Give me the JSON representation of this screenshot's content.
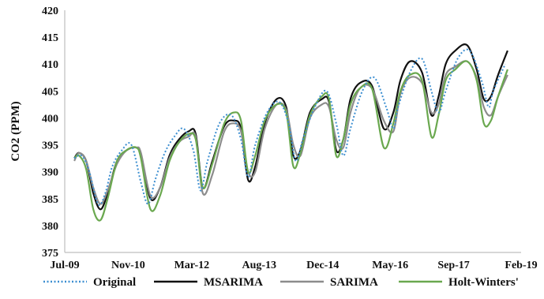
{
  "chart_data": {
    "type": "line",
    "title": "",
    "xlabel": "",
    "ylabel": "CO2 (PPM)",
    "ylim": [
      375,
      420
    ],
    "yticks": [
      375,
      380,
      385,
      390,
      395,
      400,
      405,
      410,
      415,
      420
    ],
    "xlim": [
      2009.5,
      2019.083
    ],
    "xtick_positions": [
      2009.5,
      2010.833,
      2012.167,
      2013.583,
      2014.917,
      2016.333,
      2017.667,
      2019.083
    ],
    "xtick_labels": [
      "Jul-09",
      "Nov-10",
      "Mar-12",
      "Aug-13",
      "Dec-14",
      "May-16",
      "Sep-17",
      "Feb-19"
    ],
    "grid": false,
    "legend_position": "bottom",
    "series": [
      {
        "name": "Original",
        "color": "#3d8fd1",
        "style": "dotted",
        "x": [
          2009.7,
          2009.85,
          2010.0,
          2010.2,
          2010.35,
          2010.5,
          2010.7,
          2010.9,
          2011.1,
          2011.25,
          2011.4,
          2011.6,
          2011.8,
          2012.0,
          2012.2,
          2012.35,
          2012.5,
          2012.75,
          2013.0,
          2013.2,
          2013.35,
          2013.5,
          2013.75,
          2014.0,
          2014.2,
          2014.35,
          2014.5,
          2014.75,
          2015.0,
          2015.2,
          2015.35,
          2015.5,
          2015.75,
          2016.0,
          2016.25,
          2016.4,
          2016.5,
          2016.75,
          2017.0,
          2017.2,
          2017.35,
          2017.5,
          2017.75,
          2018.0,
          2018.25,
          2018.4,
          2018.5,
          2018.75
        ],
        "values": [
          392.5,
          393.0,
          390.5,
          384.0,
          386.0,
          391.0,
          394.0,
          395.0,
          388.0,
          384.0,
          388.5,
          393.5,
          396.5,
          398.0,
          394.0,
          386.5,
          392.0,
          399.0,
          400.5,
          396.0,
          389.0,
          395.0,
          401.0,
          403.0,
          399.0,
          392.0,
          396.0,
          402.0,
          405.0,
          399.0,
          393.0,
          398.0,
          405.0,
          407.5,
          402.0,
          398.0,
          402.0,
          408.5,
          411.0,
          405.0,
          401.0,
          405.0,
          411.0,
          412.5,
          407.0,
          402.0,
          405.0,
          410.0
        ]
      },
      {
        "name": "MSARIMA",
        "color": "#111111",
        "style": "solid",
        "x": [
          2009.7,
          2009.8,
          2009.95,
          2010.1,
          2010.25,
          2010.4,
          2010.6,
          2010.8,
          2011.0,
          2011.1,
          2011.3,
          2011.5,
          2011.7,
          2011.9,
          2012.1,
          2012.25,
          2012.4,
          2012.6,
          2012.85,
          2013.05,
          2013.2,
          2013.35,
          2013.5,
          2013.7,
          2013.95,
          2014.15,
          2014.3,
          2014.45,
          2014.65,
          2014.9,
          2015.05,
          2015.2,
          2015.35,
          2015.5,
          2015.7,
          2015.95,
          2016.2,
          2016.4,
          2016.55,
          2016.75,
          2017.0,
          2017.2,
          2017.35,
          2017.5,
          2017.7,
          2017.95,
          2018.15,
          2018.3,
          2018.45,
          2018.6,
          2018.8
        ],
        "values": [
          392.5,
          393.5,
          392.0,
          386.0,
          383.0,
          386.0,
          392.0,
          394.0,
          394.5,
          393.0,
          385.0,
          387.0,
          393.0,
          396.0,
          397.5,
          397.0,
          387.0,
          392.0,
          398.5,
          399.5,
          398.0,
          388.5,
          391.0,
          399.0,
          403.5,
          402.0,
          393.0,
          394.0,
          401.0,
          403.5,
          403.0,
          394.0,
          396.0,
          403.5,
          406.5,
          406.0,
          398.0,
          401.0,
          407.0,
          410.5,
          408.5,
          400.5,
          404.0,
          410.0,
          412.5,
          413.5,
          409.0,
          403.5,
          404.0,
          408.0,
          412.5
        ]
      },
      {
        "name": "SARIMA",
        "color": "#8c8c8c",
        "style": "solid",
        "x": [
          2009.7,
          2009.8,
          2009.95,
          2010.1,
          2010.25,
          2010.4,
          2010.6,
          2010.8,
          2011.0,
          2011.1,
          2011.3,
          2011.5,
          2011.7,
          2011.9,
          2012.1,
          2012.25,
          2012.4,
          2012.6,
          2012.85,
          2013.05,
          2013.2,
          2013.35,
          2013.5,
          2013.7,
          2013.95,
          2014.15,
          2014.3,
          2014.45,
          2014.65,
          2014.9,
          2015.05,
          2015.2,
          2015.35,
          2015.5,
          2015.7,
          2015.95,
          2016.2,
          2016.4,
          2016.55,
          2016.75,
          2017.0,
          2017.2,
          2017.35,
          2017.5,
          2017.7,
          2017.95,
          2018.15,
          2018.3,
          2018.45,
          2018.6,
          2018.8
        ],
        "values": [
          392.0,
          393.5,
          392.0,
          387.0,
          384.0,
          386.5,
          391.5,
          394.0,
          394.5,
          393.5,
          385.5,
          387.0,
          392.5,
          395.5,
          396.5,
          396.5,
          386.0,
          389.5,
          397.5,
          399.0,
          397.5,
          390.0,
          390.0,
          398.0,
          402.5,
          401.5,
          395.0,
          393.0,
          400.0,
          402.5,
          402.0,
          396.0,
          394.5,
          401.0,
          405.5,
          405.5,
          399.5,
          397.5,
          404.5,
          407.5,
          406.5,
          401.0,
          402.5,
          408.0,
          409.5,
          410.5,
          407.5,
          402.0,
          400.5,
          404.0,
          408.0
        ]
      },
      {
        "name": "Holt-Winters'",
        "color": "#6aa84f",
        "style": "solid",
        "x": [
          2009.7,
          2009.8,
          2009.95,
          2010.1,
          2010.25,
          2010.4,
          2010.6,
          2010.8,
          2011.0,
          2011.1,
          2011.3,
          2011.5,
          2011.7,
          2011.9,
          2012.1,
          2012.25,
          2012.4,
          2012.6,
          2012.85,
          2013.05,
          2013.2,
          2013.35,
          2013.5,
          2013.7,
          2013.95,
          2014.15,
          2014.3,
          2014.45,
          2014.65,
          2014.9,
          2015.05,
          2015.2,
          2015.35,
          2015.5,
          2015.7,
          2015.95,
          2016.2,
          2016.4,
          2016.55,
          2016.75,
          2017.0,
          2017.2,
          2017.35,
          2017.5,
          2017.7,
          2017.95,
          2018.15,
          2018.3,
          2018.45,
          2018.6,
          2018.8
        ],
        "values": [
          392.5,
          393.0,
          390.5,
          383.0,
          381.0,
          385.0,
          392.0,
          394.0,
          394.5,
          392.5,
          383.0,
          385.5,
          392.0,
          395.5,
          397.0,
          396.0,
          387.0,
          391.5,
          399.0,
          401.0,
          399.5,
          390.0,
          393.0,
          399.5,
          402.5,
          401.0,
          391.0,
          393.5,
          400.5,
          404.0,
          403.5,
          393.0,
          396.0,
          402.5,
          405.5,
          405.5,
          394.5,
          399.0,
          405.0,
          408.0,
          407.0,
          396.5,
          400.5,
          407.0,
          409.0,
          410.5,
          407.0,
          399.0,
          399.5,
          404.0,
          409.0
        ]
      }
    ]
  }
}
